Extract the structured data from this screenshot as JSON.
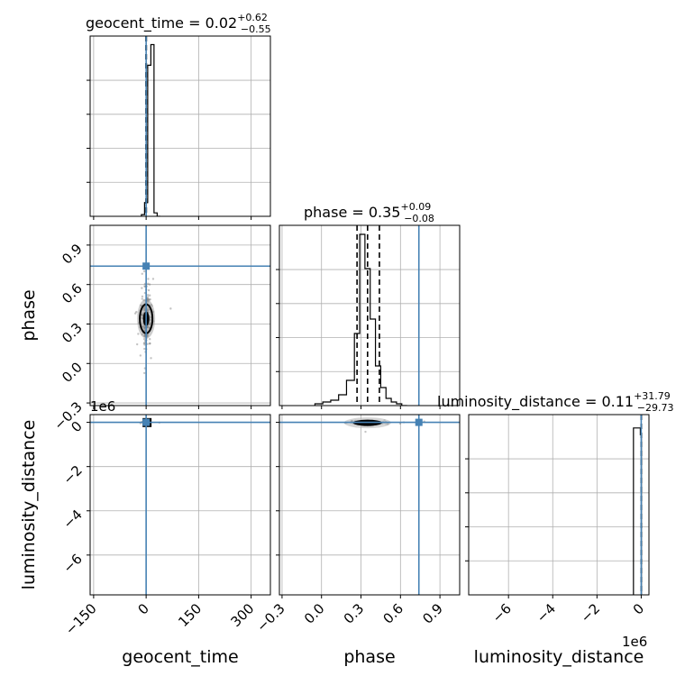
{
  "chart_data": {
    "type": "corner",
    "parameters": [
      "geocent_time",
      "phase",
      "luminosity_distance"
    ],
    "axis_labels": {
      "geocent_time": "geocent_time",
      "phase": "phase",
      "luminosity_distance": "luminosity_distance"
    },
    "titles": {
      "geocent_time": {
        "name": "geocent_time",
        "median": "0.02",
        "plus": "+0.62",
        "minus": "−0.55"
      },
      "phase": {
        "name": "phase",
        "median": "0.35",
        "plus": "+0.09",
        "minus": "−0.08"
      },
      "luminosity_distance": {
        "name": "luminosity_distance",
        "median": "0.11",
        "plus": "+31.79",
        "minus": "−29.73"
      }
    },
    "ranges": {
      "geocent_time": [
        -160,
        355
      ],
      "phase": [
        -0.32,
        1.05
      ],
      "luminosity_distance": [
        -7800000.0,
        350000.0
      ]
    },
    "ticks": {
      "geocent_time": [
        -150,
        0,
        150,
        300
      ],
      "phase": [
        -0.3,
        0.0,
        0.3,
        0.6,
        0.9
      ],
      "luminosity_distance": [
        -6000000.0,
        -4000000.0,
        -2000000.0,
        0
      ]
    },
    "tick_labels": {
      "geocent_time": [
        "−150",
        "0",
        "150",
        "300"
      ],
      "phase": [
        "−0.3",
        "0.0",
        "0.3",
        "0.6",
        "0.9"
      ],
      "luminosity_distance": [
        "−6",
        "−4",
        "−2",
        "0"
      ]
    },
    "offset_text": "1e6",
    "truths": {
      "geocent_time": 0,
      "phase": 0.74,
      "luminosity_distance": 0
    },
    "truth_color": "#4682b4",
    "hist_color": "#000000",
    "grid": true,
    "quantile_lines": {
      "geocent_time": [
        -0.53,
        0.02,
        0.64
      ],
      "phase": [
        0.27,
        0.35,
        0.44
      ],
      "luminosity_distance": [
        -29.6,
        0.11,
        31.9
      ]
    },
    "histograms": {
      "geocent_time": {
        "edges": [
          -13.5,
          -4.5,
          4.5,
          13.5,
          22.5,
          31.5,
          40.5
        ],
        "counts": [
          1,
          8,
          88,
          100,
          2,
          0
        ],
        "ylim": [
          0,
          105
        ]
      },
      "phase": {
        "edges": [
          -0.05,
          0.01,
          0.07,
          0.13,
          0.19,
          0.25,
          0.29,
          0.33,
          0.37,
          0.41,
          0.45,
          0.49,
          0.53,
          0.57,
          0.61,
          0.65
        ],
        "counts": [
          1,
          2,
          3,
          6,
          14,
          40,
          95,
          76,
          48,
          22,
          10,
          4,
          2,
          1,
          0
        ],
        "ylim": [
          0,
          100
        ]
      },
      "luminosity_distance": {
        "edges": [
          -350000.0,
          -40000.0,
          10000.0
        ],
        "counts": [
          100,
          96
        ],
        "ylim": [
          0,
          108
        ]
      }
    },
    "scatter": {
      "phase_vs_geocent_time": {
        "center": [
          0,
          0.34
        ],
        "spread": [
          6,
          0.08
        ],
        "n": 280
      },
      "luminosity_distance_vs_geocent_time": {
        "center": [
          0,
          -10000.0
        ],
        "spread": [
          4,
          20000.0
        ],
        "n": 80
      },
      "luminosity_distance_vs_phase": {
        "center": [
          0.35,
          -20000.0
        ],
        "spread": [
          0.07,
          40000.0
        ],
        "n": 160
      }
    }
  }
}
